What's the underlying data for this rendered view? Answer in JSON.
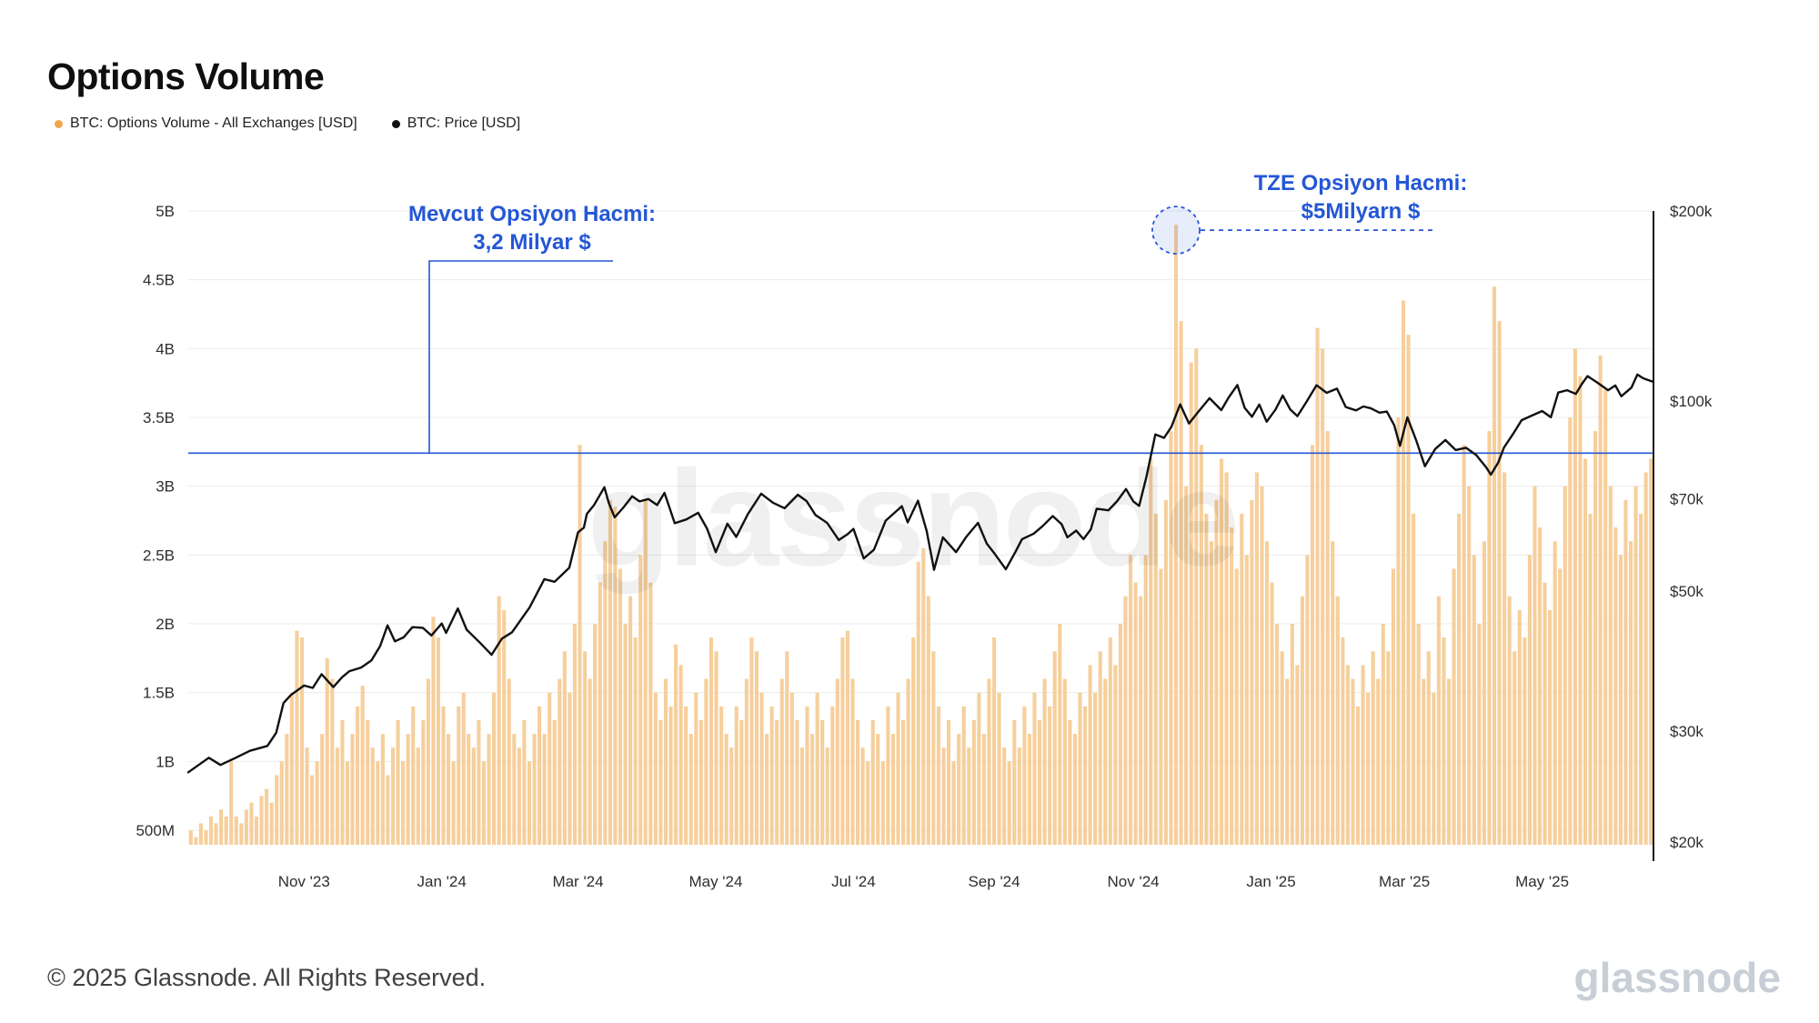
{
  "page": {
    "title": "Options Volume",
    "footer_copyright": "© 2025 Glassnode. All Rights Reserved.",
    "watermark": "glassnode",
    "brand_watermark": "glassnode"
  },
  "legend": [
    {
      "label": "BTC: Options Volume - All Exchanges [USD]",
      "color": "#f0a64f"
    },
    {
      "label": "BTC: Price [USD]",
      "color": "#111111"
    }
  ],
  "annotations": {
    "current_volume": {
      "line1": "Mevcut Opsiyon Hacmi:",
      "line2": "3,2 Milyar $",
      "level_billions": 3.24,
      "color": "#2457d6"
    },
    "tze_volume": {
      "line1": "TZE Opsiyon Hacmi:",
      "line2": "$5Milyarn $",
      "peak_billions": 4.9,
      "color": "#2457d6"
    }
  },
  "chart_data": {
    "type": "bar",
    "title": "Options Volume",
    "bar_color": "#f6cf9c",
    "line_color": "#111111",
    "grid_color": "#ececec",
    "left_axis": {
      "scale": "linear",
      "unit": "USD",
      "ticks": [
        {
          "v": 0.5,
          "label": "500M"
        },
        {
          "v": 1,
          "label": "1B"
        },
        {
          "v": 1.5,
          "label": "1.5B"
        },
        {
          "v": 2,
          "label": "2B"
        },
        {
          "v": 2.5,
          "label": "2.5B"
        },
        {
          "v": 3,
          "label": "3B"
        },
        {
          "v": 3.5,
          "label": "3.5B"
        },
        {
          "v": 4,
          "label": "4B"
        },
        {
          "v": 4.5,
          "label": "4.5B"
        },
        {
          "v": 5,
          "label": "5B"
        }
      ]
    },
    "right_axis": {
      "scale": "log",
      "unit": "USD",
      "ticks": [
        {
          "v": 20,
          "label": "$20k"
        },
        {
          "v": 30,
          "label": "$30k"
        },
        {
          "v": 50,
          "label": "$50k"
        },
        {
          "v": 70,
          "label": "$70k"
        },
        {
          "v": 100,
          "label": "$100k"
        },
        {
          "v": 200,
          "label": "$200k"
        }
      ]
    },
    "x_axis": {
      "ticks": [
        {
          "x": 0.079,
          "label": "Nov '23"
        },
        {
          "x": 0.173,
          "label": "Jan '24"
        },
        {
          "x": 0.266,
          "label": "Mar '24"
        },
        {
          "x": 0.36,
          "label": "May '24"
        },
        {
          "x": 0.454,
          "label": "Jul '24"
        },
        {
          "x": 0.55,
          "label": "Sep '24"
        },
        {
          "x": 0.645,
          "label": "Nov '24"
        },
        {
          "x": 0.739,
          "label": "Jan '25"
        },
        {
          "x": 0.83,
          "label": "Mar '25"
        },
        {
          "x": 0.924,
          "label": "May '25"
        }
      ]
    },
    "series": [
      {
        "name": "BTC: Options Volume - All Exchanges [USD]",
        "type": "bar",
        "axis": "left",
        "unit": "USD billions",
        "values": [
          0.5,
          0.45,
          0.55,
          0.5,
          0.6,
          0.55,
          0.65,
          0.6,
          1.0,
          0.6,
          0.55,
          0.65,
          0.7,
          0.6,
          0.75,
          0.8,
          0.7,
          0.9,
          1.0,
          1.2,
          1.5,
          1.95,
          1.9,
          1.1,
          0.9,
          1.0,
          1.2,
          1.75,
          1.6,
          1.1,
          1.3,
          1.0,
          1.2,
          1.4,
          1.55,
          1.3,
          1.1,
          1.0,
          1.2,
          0.9,
          1.1,
          1.3,
          1.0,
          1.2,
          1.4,
          1.1,
          1.3,
          1.6,
          2.05,
          1.9,
          1.4,
          1.2,
          1.0,
          1.4,
          1.5,
          1.2,
          1.1,
          1.3,
          1.0,
          1.2,
          1.5,
          2.2,
          2.1,
          1.6,
          1.2,
          1.1,
          1.3,
          1.0,
          1.2,
          1.4,
          1.2,
          1.5,
          1.3,
          1.6,
          1.8,
          1.5,
          2.0,
          3.3,
          1.8,
          1.6,
          2.0,
          2.3,
          2.6,
          2.9,
          2.85,
          2.4,
          2.0,
          2.2,
          1.9,
          2.5,
          2.9,
          2.3,
          1.5,
          1.3,
          1.6,
          1.4,
          1.85,
          1.7,
          1.4,
          1.2,
          1.5,
          1.3,
          1.6,
          1.9,
          1.8,
          1.4,
          1.2,
          1.1,
          1.4,
          1.3,
          1.6,
          1.9,
          1.8,
          1.5,
          1.2,
          1.4,
          1.3,
          1.6,
          1.8,
          1.5,
          1.3,
          1.1,
          1.4,
          1.2,
          1.5,
          1.3,
          1.1,
          1.4,
          1.6,
          1.9,
          1.95,
          1.6,
          1.3,
          1.1,
          1.0,
          1.3,
          1.2,
          1.0,
          1.4,
          1.2,
          1.5,
          1.3,
          1.6,
          1.9,
          2.45,
          2.55,
          2.2,
          1.8,
          1.4,
          1.1,
          1.3,
          1.0,
          1.2,
          1.4,
          1.1,
          1.3,
          1.5,
          1.2,
          1.6,
          1.9,
          1.5,
          1.1,
          1.0,
          1.3,
          1.1,
          1.4,
          1.2,
          1.5,
          1.3,
          1.6,
          1.4,
          1.8,
          2.0,
          1.6,
          1.3,
          1.2,
          1.5,
          1.4,
          1.7,
          1.5,
          1.8,
          1.6,
          1.9,
          1.7,
          2.0,
          2.2,
          2.5,
          2.3,
          2.2,
          2.5,
          3.2,
          2.8,
          2.4,
          2.9,
          3.4,
          4.9,
          4.2,
          3.0,
          3.9,
          4.0,
          3.3,
          2.8,
          2.6,
          2.9,
          3.2,
          3.1,
          2.7,
          2.4,
          2.8,
          2.5,
          2.9,
          3.1,
          3.0,
          2.6,
          2.3,
          2.0,
          1.8,
          1.6,
          2.0,
          1.7,
          2.2,
          2.5,
          3.3,
          4.15,
          4.0,
          3.4,
          2.6,
          2.2,
          1.9,
          1.7,
          1.6,
          1.4,
          1.7,
          1.5,
          1.8,
          1.6,
          2.0,
          1.8,
          2.4,
          3.5,
          4.35,
          4.1,
          2.8,
          2.0,
          1.6,
          1.8,
          1.5,
          2.2,
          1.9,
          1.6,
          2.4,
          2.8,
          3.3,
          3.0,
          2.5,
          2.0,
          2.6,
          3.4,
          4.45,
          4.2,
          3.1,
          2.2,
          1.8,
          2.1,
          1.9,
          2.5,
          3.0,
          2.7,
          2.3,
          2.1,
          2.6,
          2.4,
          3.0,
          3.5,
          4.0,
          3.8,
          3.2,
          2.8,
          3.4,
          3.95,
          3.7,
          3.0,
          2.7,
          2.5,
          2.9,
          2.6,
          3.0,
          2.8,
          3.1,
          3.2
        ]
      },
      {
        "name": "BTC: Price [USD]",
        "type": "line",
        "axis": "right",
        "unit": "USD thousands",
        "points": [
          [
            0.0,
            25.8
          ],
          [
            0.014,
            27.2
          ],
          [
            0.022,
            26.5
          ],
          [
            0.031,
            27.1
          ],
          [
            0.042,
            27.9
          ],
          [
            0.054,
            28.4
          ],
          [
            0.06,
            29.8
          ],
          [
            0.065,
            33.2
          ],
          [
            0.07,
            34.2
          ],
          [
            0.079,
            35.4
          ],
          [
            0.085,
            35.1
          ],
          [
            0.091,
            36.9
          ],
          [
            0.099,
            35.2
          ],
          [
            0.105,
            36.5
          ],
          [
            0.11,
            37.3
          ],
          [
            0.118,
            37.8
          ],
          [
            0.125,
            38.8
          ],
          [
            0.131,
            40.9
          ],
          [
            0.136,
            44.1
          ],
          [
            0.141,
            41.6
          ],
          [
            0.147,
            42.2
          ],
          [
            0.153,
            43.8
          ],
          [
            0.16,
            43.7
          ],
          [
            0.166,
            42.5
          ],
          [
            0.173,
            44.4
          ],
          [
            0.176,
            42.9
          ],
          [
            0.184,
            46.9
          ],
          [
            0.19,
            43.4
          ],
          [
            0.199,
            41.4
          ],
          [
            0.207,
            39.6
          ],
          [
            0.214,
            42.0
          ],
          [
            0.221,
            43.0
          ],
          [
            0.233,
            47.1
          ],
          [
            0.243,
            52.2
          ],
          [
            0.25,
            51.7
          ],
          [
            0.26,
            54.4
          ],
          [
            0.266,
            61.9
          ],
          [
            0.27,
            63.0
          ],
          [
            0.272,
            66.2
          ],
          [
            0.277,
            68.4
          ],
          [
            0.284,
            73.0
          ],
          [
            0.287,
            68.9
          ],
          [
            0.291,
            65.4
          ],
          [
            0.297,
            67.8
          ],
          [
            0.303,
            70.6
          ],
          [
            0.308,
            69.3
          ],
          [
            0.314,
            69.9
          ],
          [
            0.32,
            68.4
          ],
          [
            0.325,
            71.5
          ],
          [
            0.332,
            64.0
          ],
          [
            0.34,
            64.9
          ],
          [
            0.348,
            66.5
          ],
          [
            0.354,
            62.8
          ],
          [
            0.36,
            57.6
          ],
          [
            0.368,
            63.9
          ],
          [
            0.374,
            60.9
          ],
          [
            0.382,
            66.2
          ],
          [
            0.391,
            71.3
          ],
          [
            0.399,
            69.0
          ],
          [
            0.407,
            67.6
          ],
          [
            0.416,
            71.0
          ],
          [
            0.422,
            69.4
          ],
          [
            0.428,
            66.0
          ],
          [
            0.436,
            64.1
          ],
          [
            0.444,
            60.2
          ],
          [
            0.45,
            61.5
          ],
          [
            0.454,
            62.7
          ],
          [
            0.461,
            56.3
          ],
          [
            0.468,
            58.1
          ],
          [
            0.476,
            64.6
          ],
          [
            0.483,
            66.8
          ],
          [
            0.487,
            68.1
          ],
          [
            0.491,
            64.2
          ],
          [
            0.498,
            69.5
          ],
          [
            0.504,
            62.2
          ],
          [
            0.509,
            54.0
          ],
          [
            0.515,
            60.8
          ],
          [
            0.524,
            57.6
          ],
          [
            0.531,
            60.9
          ],
          [
            0.539,
            64.1
          ],
          [
            0.545,
            59.4
          ],
          [
            0.55,
            57.4
          ],
          [
            0.558,
            54.1
          ],
          [
            0.565,
            57.9
          ],
          [
            0.569,
            60.4
          ],
          [
            0.577,
            61.6
          ],
          [
            0.583,
            63.3
          ],
          [
            0.59,
            65.7
          ],
          [
            0.596,
            63.8
          ],
          [
            0.6,
            60.8
          ],
          [
            0.606,
            62.3
          ],
          [
            0.611,
            60.4
          ],
          [
            0.616,
            62.6
          ],
          [
            0.62,
            67.5
          ],
          [
            0.628,
            67.1
          ],
          [
            0.634,
            69.4
          ],
          [
            0.64,
            72.5
          ],
          [
            0.645,
            69.3
          ],
          [
            0.649,
            68.2
          ],
          [
            0.654,
            75.9
          ],
          [
            0.66,
            88.5
          ],
          [
            0.666,
            87.4
          ],
          [
            0.671,
            91.0
          ],
          [
            0.677,
            98.8
          ],
          [
            0.683,
            92.1
          ],
          [
            0.689,
            95.9
          ],
          [
            0.697,
            101.0
          ],
          [
            0.705,
            96.7
          ],
          [
            0.71,
            101.2
          ],
          [
            0.716,
            106.0
          ],
          [
            0.721,
            97.5
          ],
          [
            0.726,
            94.4
          ],
          [
            0.731,
            98.7
          ],
          [
            0.736,
            92.7
          ],
          [
            0.742,
            96.9
          ],
          [
            0.747,
            102.0
          ],
          [
            0.752,
            97.0
          ],
          [
            0.757,
            94.6
          ],
          [
            0.763,
            99.5
          ],
          [
            0.77,
            105.9
          ],
          [
            0.777,
            103.0
          ],
          [
            0.784,
            104.6
          ],
          [
            0.79,
            97.8
          ],
          [
            0.797,
            96.6
          ],
          [
            0.802,
            98.0
          ],
          [
            0.807,
            97.4
          ],
          [
            0.813,
            95.8
          ],
          [
            0.818,
            96.2
          ],
          [
            0.823,
            91.6
          ],
          [
            0.827,
            84.9
          ],
          [
            0.832,
            94.2
          ],
          [
            0.838,
            86.7
          ],
          [
            0.844,
            78.8
          ],
          [
            0.851,
            83.9
          ],
          [
            0.858,
            86.7
          ],
          [
            0.865,
            83.6
          ],
          [
            0.872,
            84.3
          ],
          [
            0.879,
            82.1
          ],
          [
            0.886,
            78.4
          ],
          [
            0.889,
            76.4
          ],
          [
            0.894,
            79.8
          ],
          [
            0.898,
            84.4
          ],
          [
            0.904,
            88.5
          ],
          [
            0.91,
            93.2
          ],
          [
            0.917,
            94.8
          ],
          [
            0.924,
            96.4
          ],
          [
            0.93,
            94.2
          ],
          [
            0.935,
            103.1
          ],
          [
            0.941,
            104.0
          ],
          [
            0.947,
            102.6
          ],
          [
            0.951,
            106.3
          ],
          [
            0.955,
            109.5
          ],
          [
            0.961,
            107.2
          ],
          [
            0.969,
            104.0
          ],
          [
            0.974,
            105.8
          ],
          [
            0.978,
            101.7
          ],
          [
            0.985,
            105.0
          ],
          [
            0.989,
            110.1
          ],
          [
            0.993,
            108.6
          ],
          [
            1.0,
            107.2
          ]
        ]
      }
    ]
  }
}
